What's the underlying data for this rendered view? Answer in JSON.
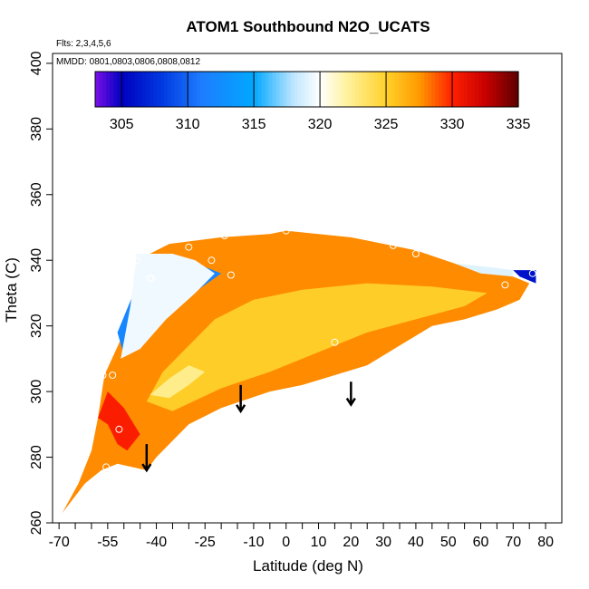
{
  "chart_data": {
    "type": "heatmap",
    "title": "ATOM1 Southbound N2O_UCATS",
    "flights_note": "Flts: 2,3,4,5,6",
    "dates_note": "MMDD: 0801,0803,0806,0808,0812",
    "xlabel": "Latitude (deg N)",
    "ylabel": "Theta (C)",
    "xlim": [
      -72,
      85
    ],
    "ylim": [
      260,
      403
    ],
    "x_ticks": [
      -70,
      -55,
      -40,
      -25,
      -10,
      0,
      10,
      20,
      30,
      40,
      50,
      60,
      70,
      80
    ],
    "x_minor_ticks": [
      -65,
      -60,
      -50,
      -45,
      -35,
      -30,
      -20,
      -15,
      -5,
      5,
      15,
      25,
      35,
      45,
      55,
      65,
      75
    ],
    "y_ticks": [
      260,
      280,
      300,
      320,
      340,
      360,
      380,
      400
    ],
    "colorbar": {
      "min": 303,
      "max": 335,
      "ticks": [
        305,
        310,
        315,
        320,
        325,
        330,
        335
      ],
      "stops": [
        {
          "value": 303,
          "color": "#7a10e8"
        },
        {
          "value": 305,
          "color": "#0000c0"
        },
        {
          "value": 308,
          "color": "#0038e0"
        },
        {
          "value": 311,
          "color": "#1e7cff"
        },
        {
          "value": 315,
          "color": "#00a8ff"
        },
        {
          "value": 318,
          "color": "#bfe6ff"
        },
        {
          "value": 320,
          "color": "#ffffff"
        },
        {
          "value": 322,
          "color": "#fff2a0"
        },
        {
          "value": 325,
          "color": "#ffd12a"
        },
        {
          "value": 327.5,
          "color": "#ff9a00"
        },
        {
          "value": 330,
          "color": "#ff2000"
        },
        {
          "value": 332.5,
          "color": "#c80000"
        },
        {
          "value": 335,
          "color": "#5c0000"
        }
      ]
    },
    "field_regions": [
      {
        "name": "main-orange",
        "value": 327.8,
        "outline": [
          [
            -69,
            263
          ],
          [
            -64,
            272
          ],
          [
            -60,
            282
          ],
          [
            -58,
            292
          ],
          [
            -56,
            305
          ],
          [
            -50,
            318
          ],
          [
            -45,
            335
          ],
          [
            -44,
            341
          ],
          [
            -36,
            345
          ],
          [
            -20,
            347
          ],
          [
            -5,
            348
          ],
          [
            0,
            349
          ],
          [
            20,
            347
          ],
          [
            40,
            343
          ],
          [
            55,
            338
          ],
          [
            65,
            336
          ],
          [
            70,
            335
          ],
          [
            75,
            333
          ],
          [
            72,
            328
          ],
          [
            65,
            325
          ],
          [
            55,
            322
          ],
          [
            45,
            320
          ],
          [
            35,
            314
          ],
          [
            25,
            308
          ],
          [
            15,
            305
          ],
          [
            5,
            302
          ],
          [
            -5,
            300
          ],
          [
            -20,
            295
          ],
          [
            -30,
            290
          ],
          [
            -40,
            280
          ],
          [
            -43,
            276
          ],
          [
            -52,
            278
          ],
          [
            -57,
            276
          ],
          [
            -62,
            272
          ],
          [
            -69,
            263
          ]
        ]
      },
      {
        "name": "yellow-core",
        "value": 325.2,
        "outline": [
          [
            -43,
            297
          ],
          [
            -38,
            306
          ],
          [
            -30,
            314
          ],
          [
            -22,
            322
          ],
          [
            -10,
            328
          ],
          [
            5,
            331
          ],
          [
            25,
            333
          ],
          [
            45,
            332
          ],
          [
            62,
            330
          ],
          [
            55,
            326
          ],
          [
            40,
            322
          ],
          [
            25,
            318
          ],
          [
            10,
            312
          ],
          [
            -5,
            306
          ],
          [
            -20,
            301
          ],
          [
            -35,
            294
          ],
          [
            -43,
            297
          ]
        ]
      },
      {
        "name": "pale-yellow-core",
        "value": 322.5,
        "outline": [
          [
            -42,
            299
          ],
          [
            -36,
            304
          ],
          [
            -30,
            308
          ],
          [
            -25,
            306
          ],
          [
            -30,
            302
          ],
          [
            -36,
            298
          ],
          [
            -42,
            299
          ]
        ]
      },
      {
        "name": "red-edge",
        "value": 330.2,
        "outline": [
          [
            -58,
            292
          ],
          [
            -55,
            290
          ],
          [
            -52,
            284
          ],
          [
            -49,
            282
          ],
          [
            -45,
            287
          ],
          [
            -50,
            295
          ],
          [
            -55,
            300
          ],
          [
            -58,
            292
          ]
        ]
      },
      {
        "name": "blue-tongue",
        "value": 312,
        "outline": [
          [
            -46,
            342
          ],
          [
            -40,
            341
          ],
          [
            -35,
            342
          ],
          [
            -20,
            336
          ],
          [
            -30,
            329
          ],
          [
            -40,
            320
          ],
          [
            -50,
            311
          ],
          [
            -52,
            318
          ],
          [
            -47,
            330
          ],
          [
            -46,
            342
          ]
        ]
      },
      {
        "name": "blue-core",
        "value": 306,
        "outline": [
          [
            -45,
            337
          ],
          [
            -40,
            337
          ],
          [
            -33,
            334
          ],
          [
            -40,
            328
          ],
          [
            -45,
            327
          ],
          [
            -45,
            337
          ]
        ]
      },
      {
        "name": "white-edge",
        "value": 319.5,
        "outline": [
          [
            -51,
            310
          ],
          [
            -45,
            313
          ],
          [
            -37,
            322
          ],
          [
            -28,
            330
          ],
          [
            -22,
            336
          ],
          [
            -28,
            340
          ],
          [
            -35,
            342
          ],
          [
            -46,
            342
          ],
          [
            -48,
            326
          ],
          [
            -51,
            310
          ]
        ]
      },
      {
        "name": "right-blue-tip",
        "value": 306,
        "outline": [
          [
            70,
            337
          ],
          [
            77,
            337
          ],
          [
            77,
            333
          ],
          [
            72,
            335
          ],
          [
            70,
            337
          ]
        ]
      },
      {
        "name": "right-pale-edge",
        "value": 319,
        "outline": [
          [
            52,
            339
          ],
          [
            62,
            338
          ],
          [
            70,
            337
          ],
          [
            70,
            335
          ],
          [
            60,
            336
          ],
          [
            52,
            339
          ]
        ]
      }
    ],
    "sample_points": [
      {
        "lat": -56.5,
        "theta": 305
      },
      {
        "lat": -53.5,
        "theta": 305
      },
      {
        "lat": -51.5,
        "theta": 288.5
      },
      {
        "lat": -55.5,
        "theta": 277
      },
      {
        "lat": -46,
        "theta": 340
      },
      {
        "lat": -42,
        "theta": 334.5
      },
      {
        "lat": -41.5,
        "theta": 334.5
      },
      {
        "lat": -30,
        "theta": 344
      },
      {
        "lat": -23,
        "theta": 340
      },
      {
        "lat": -17,
        "theta": 335.5
      },
      {
        "lat": -19,
        "theta": 347.5
      },
      {
        "lat": 0,
        "theta": 349
      },
      {
        "lat": 15,
        "theta": 315
      },
      {
        "lat": 33,
        "theta": 344.5
      },
      {
        "lat": 40,
        "theta": 342
      },
      {
        "lat": 67.5,
        "theta": 332.5
      },
      {
        "lat": 76,
        "theta": 336
      }
    ],
    "arrows": [
      {
        "lat": -43,
        "theta_start": 284,
        "theta_end": 276
      },
      {
        "lat": -14,
        "theta_start": 302,
        "theta_end": 294
      },
      {
        "lat": 20,
        "theta_start": 303,
        "theta_end": 296
      }
    ]
  }
}
